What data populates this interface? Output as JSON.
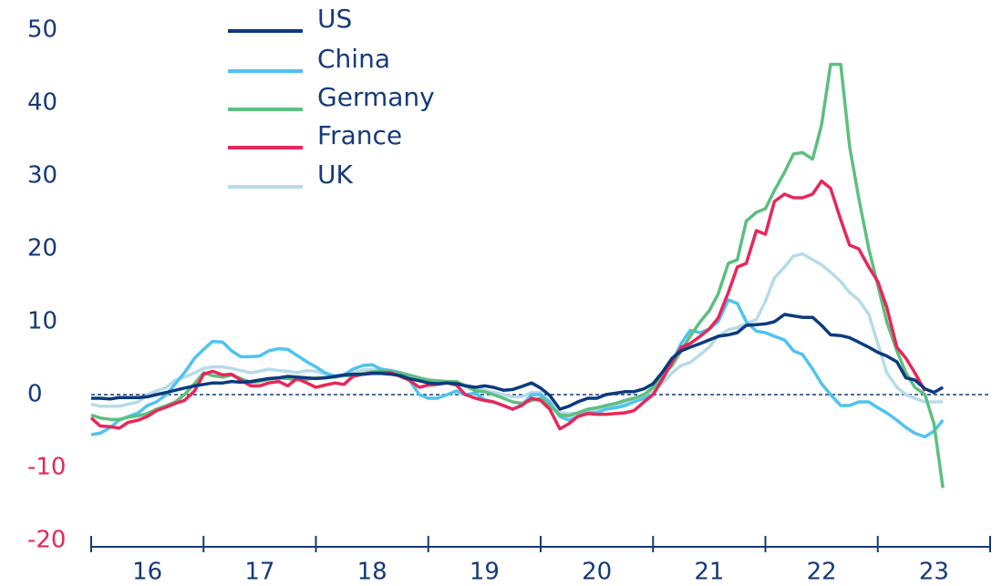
{
  "chart_data": {
    "type": "line",
    "categories": [
      "16",
      "17",
      "18",
      "19",
      "20",
      "21",
      "22",
      "23"
    ],
    "x": [
      16.0,
      16.08,
      16.17,
      16.25,
      16.33,
      16.42,
      16.5,
      16.58,
      16.67,
      16.75,
      16.83,
      16.92,
      17.0,
      17.08,
      17.17,
      17.25,
      17.33,
      17.42,
      17.5,
      17.58,
      17.67,
      17.75,
      17.83,
      17.92,
      18.0,
      18.08,
      18.17,
      18.25,
      18.33,
      18.42,
      18.5,
      18.58,
      18.67,
      18.75,
      18.83,
      18.92,
      19.0,
      19.08,
      19.17,
      19.25,
      19.33,
      19.42,
      19.5,
      19.58,
      19.67,
      19.75,
      19.83,
      19.92,
      20.0,
      20.08,
      20.17,
      20.25,
      20.33,
      20.42,
      20.5,
      20.58,
      20.67,
      20.75,
      20.83,
      20.92,
      21.0,
      21.08,
      21.17,
      21.25,
      21.33,
      21.42,
      21.5,
      21.58,
      21.67,
      21.75,
      21.83,
      21.92,
      22.0,
      22.08,
      22.17,
      22.25,
      22.33,
      22.42,
      22.5,
      22.58,
      22.67,
      22.75,
      22.83,
      22.92,
      23.0,
      23.08,
      23.17,
      23.25,
      23.33,
      23.42,
      23.5,
      23.58
    ],
    "series": [
      {
        "name": "US",
        "color": "#0b3a7e",
        "values": [
          -0.5,
          -0.5,
          -0.6,
          -0.4,
          -0.4,
          -0.4,
          -0.3,
          0,
          0.3,
          0.6,
          0.9,
          1.2,
          1.4,
          1.6,
          1.6,
          1.8,
          1.7,
          1.8,
          2,
          2.2,
          2.3,
          2.5,
          2.4,
          2.3,
          2.2,
          2.3,
          2.5,
          2.7,
          2.8,
          2.8,
          2.9,
          2.9,
          2.8,
          2.6,
          2.2,
          1.9,
          1.6,
          1.5,
          1.6,
          1.5,
          1.2,
          1,
          1.2,
          1,
          0.6,
          0.7,
          1.1,
          1.6,
          0.9,
          -0.1,
          -2,
          -1.6,
          -1,
          -0.5,
          -0.5,
          0,
          0.2,
          0.4,
          0.4,
          0.8,
          1.5,
          3,
          5,
          6,
          6.5,
          7,
          7.5,
          8,
          8.2,
          8.5,
          9.5,
          9.6,
          9.7,
          10,
          11,
          10.8,
          10.6,
          10.6,
          9.5,
          8.2,
          8.1,
          7.8,
          7.2,
          6.5,
          5.8,
          5.3,
          4.5,
          2.3,
          2,
          0.8,
          0.3,
          1.0
        ]
      },
      {
        "name": "China",
        "color": "#4fc3f0",
        "values": [
          -5.5,
          -5.3,
          -4.5,
          -3.5,
          -3,
          -2.5,
          -1.5,
          -1,
          0,
          1.5,
          3,
          5,
          6.2,
          7.3,
          7.2,
          6,
          5.2,
          5.2,
          5.3,
          6,
          6.3,
          6.2,
          5.4,
          4.5,
          3.8,
          3,
          2.5,
          2.7,
          3.5,
          4,
          4.1,
          3.5,
          3.3,
          3,
          2,
          0,
          -0.5,
          -0.5,
          0,
          0.5,
          0,
          0.2,
          -0.7,
          -1,
          -1.5,
          -2,
          -1.5,
          0,
          0,
          -1,
          -3,
          -3.5,
          -3,
          -2.5,
          -2.5,
          -2,
          -1.8,
          -1.5,
          -1,
          -0.5,
          0,
          2,
          4.5,
          7,
          8.8,
          8.5,
          9,
          10,
          13,
          12.5,
          10,
          8.7,
          8.5,
          8,
          7.5,
          6,
          5.5,
          3.5,
          1.5,
          0,
          -1.5,
          -1.5,
          -1,
          -1,
          -1.8,
          -2.5,
          -3.5,
          -4.5,
          -5.3,
          -5.8,
          -5,
          -3.5
        ]
      },
      {
        "name": "Germany",
        "color": "#5dbf7f",
        "values": [
          -2.8,
          -3.2,
          -3.4,
          -3.4,
          -3.1,
          -2.9,
          -2.6,
          -2,
          -1.5,
          -1,
          0,
          1.5,
          3,
          2.6,
          2.4,
          2.7,
          2.2,
          1.7,
          1.8,
          2.1,
          2.3,
          2.2,
          2,
          2.1,
          2.3,
          2.3,
          2.4,
          2.6,
          2.6,
          2.9,
          3.1,
          3.3,
          3.1,
          3,
          2.7,
          2.3,
          2,
          1.9,
          1.8,
          1.8,
          1.2,
          0.5,
          0.4,
          0,
          -0.5,
          -1,
          -1.2,
          -0.8,
          -0.5,
          -1.5,
          -2.8,
          -2.9,
          -2.5,
          -2,
          -1.8,
          -1.5,
          -1.2,
          -0.8,
          -0.5,
          0,
          1,
          2.5,
          4,
          6,
          8,
          10,
          11.5,
          13.8,
          18,
          18.5,
          23.8,
          25,
          25.5,
          28,
          30.5,
          33,
          33.2,
          32.3,
          37,
          45.3,
          45.3,
          34,
          27,
          20,
          15,
          10,
          6,
          3,
          1,
          0,
          -4,
          -12.8
        ]
      },
      {
        "name": "France",
        "color": "#e8265a",
        "values": [
          -3.2,
          -4.3,
          -4.4,
          -4.6,
          -3.8,
          -3.5,
          -3,
          -2.2,
          -1.7,
          -1.2,
          -0.8,
          0.5,
          2.8,
          3.2,
          2.7,
          2.8,
          2,
          1.2,
          1.2,
          1.6,
          1.8,
          1.2,
          2.2,
          1.6,
          1,
          1.3,
          1.6,
          1.4,
          2.5,
          2.8,
          3,
          3,
          3,
          2.5,
          2,
          1,
          1.3,
          1.4,
          1.6,
          1.3,
          0,
          -0.5,
          -0.8,
          -1,
          -1.5,
          -2,
          -1.5,
          -0.5,
          -0.8,
          -2,
          -4.7,
          -4,
          -3,
          -2.6,
          -2.7,
          -2.7,
          -2.6,
          -2.5,
          -2.2,
          -1,
          0,
          2,
          4.5,
          6.5,
          7,
          8,
          9,
          10.5,
          14,
          17.5,
          18,
          22.5,
          22,
          26.5,
          27.5,
          27,
          27,
          27.5,
          29.3,
          28.3,
          24,
          20.5,
          20,
          17.5,
          15.5,
          12,
          6.5,
          5,
          3,
          0.5,
          null,
          null
        ]
      },
      {
        "name": "UK",
        "color": "#b7dbe8",
        "values": [
          -1.3,
          -1.6,
          -1.6,
          -1.6,
          -1.3,
          -1,
          0,
          0.5,
          1,
          2,
          2.4,
          3,
          3.6,
          3.8,
          3.8,
          3.6,
          3.3,
          3,
          3.2,
          3.5,
          3.3,
          3.2,
          3,
          3.3,
          3.2,
          2.8,
          2.6,
          2.7,
          3,
          3.4,
          3.4,
          3.4,
          3.2,
          3,
          2.5,
          2.2,
          2,
          1.9,
          1.8,
          1.6,
          1.3,
          1,
          0.6,
          0.3,
          0,
          -0.3,
          -0.3,
          0.3,
          0.3,
          -1.5,
          -2.5,
          -2.6,
          -2.5,
          -2.3,
          -2.2,
          -1.9,
          -1.5,
          -1,
          -0.5,
          0,
          0.5,
          1.5,
          3,
          4,
          4.4,
          5.5,
          6.5,
          8,
          8.9,
          9.2,
          9.7,
          10.3,
          12.8,
          16,
          17.5,
          19,
          19.3,
          18.5,
          17.8,
          16.8,
          15.5,
          14,
          13,
          11,
          7,
          3,
          1,
          0,
          -0.5,
          -1,
          -1,
          -1
        ]
      }
    ],
    "xlim": [
      16,
      24
    ],
    "xticks": [
      16,
      17,
      18,
      19,
      20,
      21,
      22,
      23,
      24
    ],
    "ylim": [
      -20,
      50
    ],
    "yticks": [
      -20,
      -10,
      0,
      10,
      20,
      30,
      40,
      50
    ],
    "grid": false,
    "zero_line": true,
    "legend": "top-left"
  }
}
